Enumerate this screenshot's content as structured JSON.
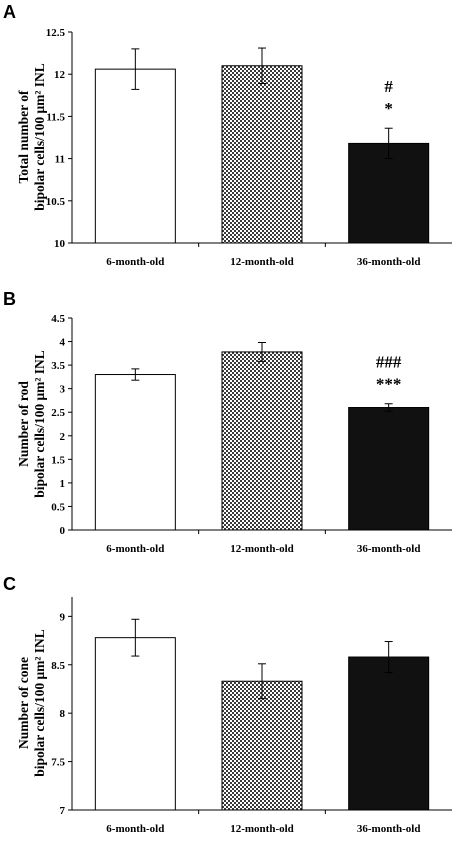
{
  "chart_data": [
    {
      "panel": "A",
      "type": "bar",
      "categories": [
        "6-month-old",
        "12-month-old",
        "36-month-old"
      ],
      "values": [
        12.06,
        12.1,
        11.18
      ],
      "errors": [
        0.24,
        0.21,
        0.18
      ],
      "ylabel_lines": [
        "Total number of",
        "bipolar cells/100 μm² INL"
      ],
      "ylim": [
        10,
        12.5
      ],
      "yticks": [
        "10",
        "10.5",
        "11",
        "11.5",
        "12",
        "12.5"
      ],
      "yticks_values": [
        10,
        10.5,
        11,
        11.5,
        12,
        12.5
      ],
      "annotations": [
        {
          "category": "36-month-old",
          "lines": [
            "#",
            "*"
          ]
        }
      ],
      "fills": [
        "white",
        "checker",
        "#111111"
      ],
      "grid": false
    },
    {
      "panel": "B",
      "type": "bar",
      "categories": [
        "6-month-old",
        "12-month-old",
        "36-month-old"
      ],
      "values": [
        3.3,
        3.78,
        2.6
      ],
      "errors": [
        0.12,
        0.2,
        0.08
      ],
      "ylabel_lines": [
        "Number of rod",
        "bipolar cells/100 μm² INL"
      ],
      "ylim": [
        0,
        4.5
      ],
      "yticks": [
        "0",
        "0.5",
        "1",
        "1.5",
        "2",
        "2.5",
        "3",
        "3.5",
        "4",
        "4.5"
      ],
      "yticks_values": [
        0,
        0.5,
        1,
        1.5,
        2,
        2.5,
        3,
        3.5,
        4,
        4.5
      ],
      "annotations": [
        {
          "category": "36-month-old",
          "lines": [
            "###",
            "***"
          ]
        }
      ],
      "fills": [
        "white",
        "checker",
        "#111111"
      ],
      "grid": false
    },
    {
      "panel": "C",
      "type": "bar",
      "categories": [
        "6-month-old",
        "12-month-old",
        "36-month-old"
      ],
      "values": [
        8.78,
        8.33,
        8.58
      ],
      "errors": [
        0.19,
        0.18,
        0.16
      ],
      "ylabel_lines": [
        "Number of cone",
        "bipolar cells/100 μm² INL"
      ],
      "ylim": [
        7,
        9.2
      ],
      "yticks": [
        "7",
        "7.5",
        "8",
        "8.5",
        "9"
      ],
      "yticks_values": [
        7,
        7.5,
        8,
        8.5,
        9
      ],
      "annotations": [],
      "fills": [
        "white",
        "checker",
        "#111111"
      ],
      "grid": false
    }
  ]
}
